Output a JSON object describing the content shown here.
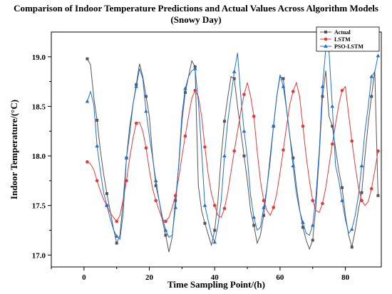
{
  "chart_data": {
    "type": "line",
    "title": "Comparison of Indoor Temperature Predictions and Actual Values Across Algorithm Models",
    "subtitle": "(Snowy Day)",
    "xlabel": "Time Sampling Point/(h)",
    "ylabel": "Indoor Temperature/(°C)",
    "xlim": [
      -10,
      91
    ],
    "ylim": [
      16.88,
      19.25
    ],
    "xticks": [
      0,
      20,
      40,
      60,
      80
    ],
    "yticks": [
      17.0,
      17.5,
      18.0,
      18.5,
      19.0
    ],
    "ytick_labels": [
      "17.0",
      "17.5",
      "18.0",
      "18.5",
      "19.0"
    ],
    "grid": false,
    "legend_position": "top-right",
    "x": [
      1,
      2,
      3,
      4,
      5,
      6,
      7,
      8,
      9,
      10,
      11,
      12,
      13,
      14,
      15,
      16,
      17,
      18,
      19,
      20,
      21,
      22,
      23,
      24,
      25,
      26,
      27,
      28,
      29,
      30,
      31,
      32,
      33,
      34,
      35,
      36,
      37,
      38,
      39,
      40,
      41,
      42,
      43,
      44,
      45,
      46,
      47,
      48,
      49,
      50,
      51,
      52,
      53,
      54,
      55,
      56,
      57,
      58,
      59,
      60,
      61,
      62,
      63,
      64,
      65,
      66,
      67,
      68,
      69,
      70,
      71,
      72,
      73,
      74,
      75,
      76,
      77,
      78,
      79,
      80,
      81,
      82,
      83,
      84,
      85,
      86,
      87,
      88,
      89,
      90
    ],
    "series": [
      {
        "name": "Actual",
        "color": "#555555",
        "marker": "square",
        "values": [
          18.98,
          18.92,
          18.59,
          18.36,
          18.06,
          17.82,
          17.62,
          17.45,
          17.27,
          17.12,
          17.2,
          17.55,
          17.98,
          18.3,
          18.52,
          18.72,
          18.93,
          18.8,
          18.6,
          18.4,
          18.0,
          17.7,
          17.55,
          17.35,
          17.2,
          17.03,
          17.18,
          17.55,
          17.9,
          18.35,
          18.64,
          18.8,
          18.96,
          18.9,
          17.7,
          17.45,
          17.32,
          17.21,
          17.1,
          17.25,
          17.55,
          18.0,
          18.35,
          18.59,
          18.8,
          18.78,
          18.5,
          18.25,
          18.0,
          17.75,
          17.45,
          17.3,
          17.12,
          17.2,
          17.4,
          17.68,
          18.0,
          18.3,
          18.6,
          18.8,
          18.78,
          18.47,
          18.2,
          17.98,
          17.7,
          17.46,
          17.28,
          17.15,
          17.06,
          17.15,
          17.5,
          18.0,
          18.6,
          18.86,
          18.4,
          18.3,
          18.07,
          17.85,
          17.68,
          17.4,
          17.2,
          17.08,
          17.25,
          17.46,
          17.63,
          18.0,
          18.33,
          18.6,
          18.86,
          17.6
        ]
      },
      {
        "name": "LSTM",
        "color": "#e03a3a",
        "marker": "circle",
        "values": [
          17.94,
          17.92,
          17.86,
          17.75,
          17.65,
          17.56,
          17.5,
          17.43,
          17.38,
          17.34,
          17.4,
          17.56,
          17.75,
          17.98,
          18.18,
          18.33,
          18.34,
          18.25,
          18.08,
          17.86,
          17.67,
          17.55,
          17.45,
          17.36,
          17.34,
          17.38,
          17.48,
          17.6,
          17.78,
          18.0,
          18.2,
          18.4,
          18.58,
          18.66,
          18.6,
          18.4,
          18.09,
          17.82,
          17.62,
          17.5,
          17.4,
          17.38,
          17.47,
          17.63,
          17.84,
          18.05,
          18.25,
          18.45,
          18.62,
          18.74,
          18.6,
          18.4,
          18.05,
          17.75,
          17.55,
          17.45,
          17.4,
          17.48,
          17.62,
          17.83,
          18.06,
          18.3,
          18.52,
          18.65,
          18.74,
          18.6,
          18.3,
          18.0,
          17.75,
          17.55,
          17.45,
          17.43,
          17.52,
          17.68,
          17.9,
          18.12,
          18.32,
          18.52,
          18.66,
          18.7,
          18.42,
          18.15,
          17.9,
          17.68,
          17.55,
          17.5,
          17.54,
          17.67,
          17.85,
          18.05
        ]
      },
      {
        "name": "PSO-LSTM",
        "color": "#1f6fd1",
        "marker": "triangle",
        "values": [
          18.55,
          18.65,
          18.52,
          18.1,
          17.85,
          17.63,
          17.5,
          17.37,
          17.26,
          17.19,
          17.16,
          17.42,
          17.98,
          18.22,
          18.52,
          18.7,
          18.88,
          18.78,
          18.45,
          18.2,
          17.98,
          17.75,
          17.55,
          17.38,
          17.25,
          17.18,
          17.2,
          17.48,
          17.92,
          18.43,
          18.68,
          18.8,
          18.86,
          18.88,
          18.55,
          18.05,
          17.5,
          17.35,
          17.21,
          17.13,
          17.3,
          17.55,
          18.0,
          18.35,
          18.6,
          18.85,
          19.04,
          18.6,
          18.25,
          17.98,
          17.6,
          17.38,
          17.25,
          17.28,
          17.48,
          17.68,
          17.95,
          18.3,
          18.6,
          18.82,
          18.7,
          18.47,
          18.2,
          17.9,
          17.62,
          17.45,
          17.33,
          17.22,
          17.2,
          17.3,
          17.6,
          18.05,
          18.7,
          19.08,
          19.05,
          18.5,
          17.9,
          17.75,
          17.55,
          17.36,
          17.22,
          17.26,
          17.4,
          17.6,
          17.9,
          18.25,
          18.5,
          18.8,
          18.85,
          19.01
        ]
      }
    ]
  }
}
